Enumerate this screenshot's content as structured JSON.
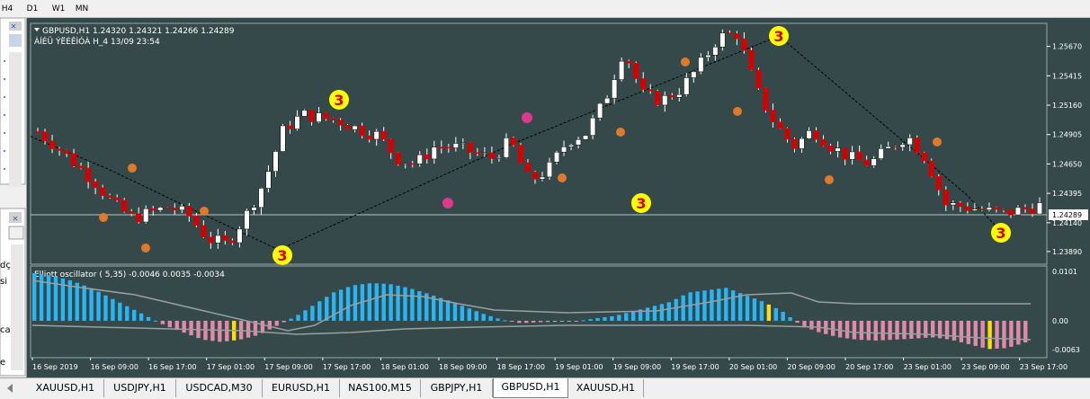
{
  "toolbar": {
    "timeframes": [
      "H4",
      "D1",
      "W1",
      "MN"
    ]
  },
  "chart": {
    "header": "GBPUSD,H1  1.24320 1.24321 1.24266 1.24289",
    "indicator_label": "ÀÍÉÜ ÝËÉÊÌÓÀ H_4 13/09 23:54",
    "current_price": "1.24289",
    "oscillator_label": "Elliott oscillator ( 5,35) -0.0046 0.0035 -0.0034",
    "osc_levels": [
      "0.0101",
      "0.00",
      "-0.0063"
    ],
    "wave_labels": [
      "3",
      "3",
      "3",
      "3",
      "3"
    ],
    "colors": {
      "background": "#36494a",
      "bull_candle": "#ffffff",
      "bear_candle": "#d40000",
      "osc_up": "#29b6f6",
      "osc_down": "#e08ba8",
      "highlight": "#ffe000"
    }
  },
  "chart_data": {
    "type": "candlestick",
    "symbol": "GBPUSD",
    "timeframe": "H1",
    "price_ticks": [
      "1.25670",
      "1.25415",
      "1.25160",
      "1.24905",
      "1.24650",
      "1.24395",
      "1.24140",
      "1.23890"
    ],
    "time_ticks": [
      "16 Sep 2019",
      "16 Sep 09:00",
      "16 Sep 17:00",
      "17 Sep 01:00",
      "17 Sep 09:00",
      "17 Sep 17:00",
      "18 Sep 01:00",
      "18 Sep 09:00",
      "18 Sep 17:00",
      "19 Sep 01:00",
      "19 Sep 09:00",
      "19 Sep 17:00",
      "20 Sep 01:00",
      "20 Sep 09:00",
      "20 Sep 17:00",
      "23 Sep 01:00",
      "23 Sep 09:00",
      "23 Sep 17:00"
    ],
    "ylim": [
      1.2378,
      1.2587
    ],
    "close_path": [
      1.2493,
      1.248,
      1.2465,
      1.245,
      1.243,
      1.2418,
      1.2423,
      1.2428,
      1.242,
      1.24,
      1.2395,
      1.242,
      1.245,
      1.2495,
      1.2508,
      1.2505,
      1.2502,
      1.2495,
      1.249,
      1.247,
      1.2465,
      1.248,
      1.248,
      1.2475,
      1.247,
      1.2485,
      1.245,
      1.246,
      1.2485,
      1.2492,
      1.252,
      1.2565,
      1.2525,
      1.252,
      1.253,
      1.255,
      1.2575,
      1.2578,
      1.253,
      1.25,
      1.248,
      1.2495,
      1.248,
      1.247,
      1.2465,
      1.2478,
      1.249,
      1.247,
      1.243,
      1.2428,
      1.2425,
      1.2422,
      1.2425,
      1.2429
    ],
    "series": [
      {
        "name": "oscillator",
        "values": [
          0.0101,
          0.0095,
          0.0085,
          0.007,
          0.005,
          0.003,
          0.001,
          -0.001,
          -0.0025,
          -0.004,
          -0.0045,
          -0.004,
          -0.003,
          -0.001,
          0.001,
          0.0035,
          0.006,
          0.0075,
          0.008,
          0.0078,
          0.007,
          0.0058,
          0.0045,
          0.003,
          0.0015,
          0.0002,
          -0.0005,
          -0.0003,
          -0.0002,
          -0.0001,
          0.0005,
          0.001,
          0.002,
          0.003,
          0.004,
          0.006,
          0.0065,
          0.007,
          0.0055,
          0.004,
          0.002,
          -0.001,
          -0.0025,
          -0.0035,
          -0.004,
          -0.0042,
          -0.004,
          -0.0038,
          -0.0035,
          -0.004,
          -0.005,
          -0.006,
          -0.0058,
          -0.0046
        ]
      }
    ]
  },
  "tabs": [
    "XAUUSD,H1",
    "USDJPY,H1",
    "USDCAD,M30",
    "EURUSD,H1",
    "NAS100,M15",
    "GBPJPY,H1",
    "GBPUSD,H1",
    "XAUUSD,H1"
  ],
  "active_tab": "GBPUSD,H1",
  "left_panel": {
    "fragments": [
      "dç",
      "si",
      "ca",
      "e"
    ]
  }
}
